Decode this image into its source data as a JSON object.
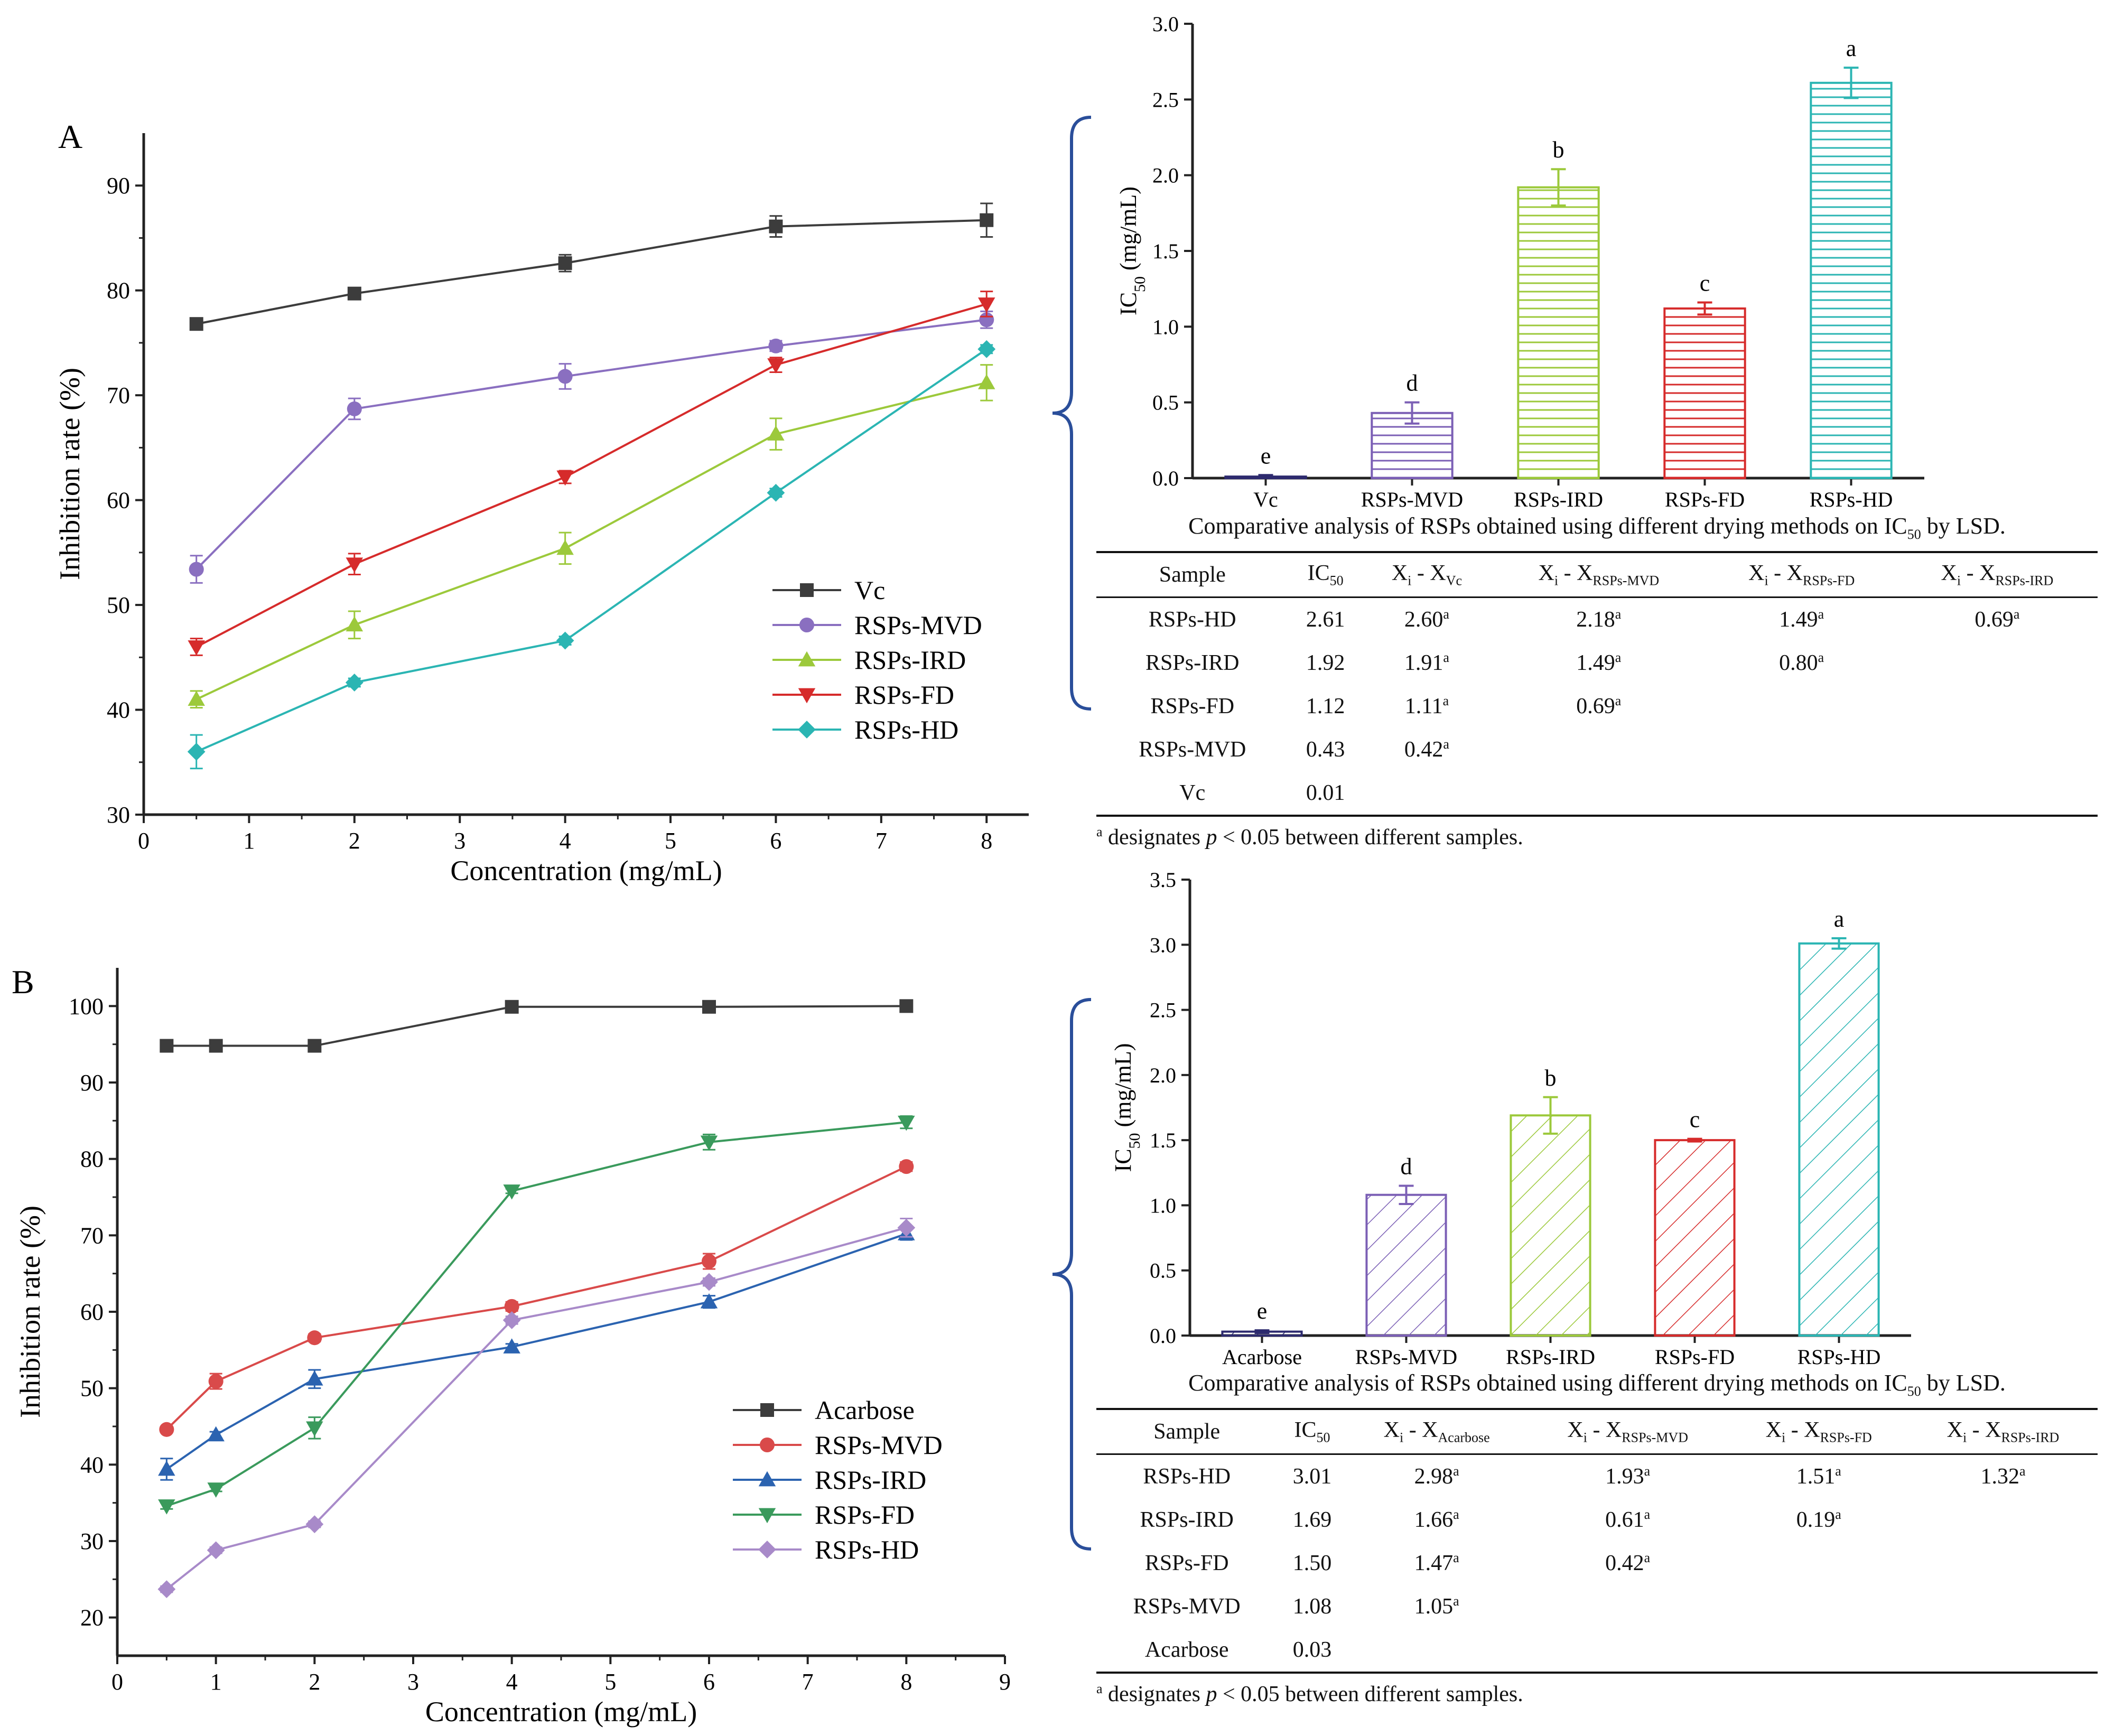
{
  "chart_data": [
    {
      "id": "A-line",
      "type": "line",
      "panel_label": "A",
      "xlabel": "Concentration (mg/mL)",
      "ylabel": "Inhibition rate (%)",
      "xlim": [
        0,
        8.4
      ],
      "ylim": [
        30,
        95
      ],
      "x_ticks": [
        "0",
        "1",
        "2",
        "3",
        "4",
        "5",
        "6",
        "7",
        "8"
      ],
      "y_ticks": [
        "30",
        "40",
        "50",
        "60",
        "70",
        "80",
        "90"
      ],
      "x": [
        0.5,
        2,
        4,
        6,
        8
      ],
      "series": [
        {
          "name": "Vc",
          "color": "#3c3c3c",
          "marker": "square",
          "values": [
            76.8,
            79.7,
            82.6,
            86.1,
            86.7
          ],
          "errors": [
            0.4,
            0.5,
            0.8,
            1.0,
            1.6
          ]
        },
        {
          "name": "RSPs-MVD",
          "color": "#8a6fc0",
          "marker": "circle",
          "values": [
            53.4,
            68.7,
            71.8,
            74.7,
            77.2
          ],
          "errors": [
            1.3,
            1.0,
            1.2,
            0.5,
            0.8
          ]
        },
        {
          "name": "RSPs-IRD",
          "color": "#9cc93b",
          "marker": "triangle-up",
          "values": [
            41.0,
            48.1,
            55.4,
            66.3,
            71.2
          ],
          "errors": [
            0.8,
            1.3,
            1.5,
            1.5,
            1.7
          ]
        },
        {
          "name": "RSPs-FD",
          "color": "#d62b2b",
          "marker": "triangle-down",
          "values": [
            46.0,
            53.9,
            62.2,
            72.9,
            78.7
          ],
          "errors": [
            0.8,
            1.0,
            0.6,
            0.7,
            1.2
          ]
        },
        {
          "name": "RSPs-HD",
          "color": "#2bb5b3",
          "marker": "diamond",
          "values": [
            36.0,
            42.6,
            46.6,
            60.7,
            74.4
          ],
          "errors": [
            1.6,
            0.4,
            0.4,
            0.4,
            0.4
          ]
        }
      ]
    },
    {
      "id": "A-bar",
      "type": "bar",
      "ylabel_main": "IC",
      "ylabel_sub": "50",
      "ylabel_unit": " (mg/mL)",
      "ylim": [
        0,
        3.0
      ],
      "y_ticks": [
        "0.0",
        "0.5",
        "1.0",
        "1.5",
        "2.0",
        "2.5",
        "3.0"
      ],
      "categories": [
        "Vc",
        "RSPs-MVD",
        "RSPs-IRD",
        "RSPs-FD",
        "RSPs-HD"
      ],
      "values": [
        0.01,
        0.43,
        1.92,
        1.12,
        2.61
      ],
      "errors": [
        0.01,
        0.07,
        0.12,
        0.04,
        0.1
      ],
      "letters": [
        "e",
        "d",
        "b",
        "c",
        "a"
      ],
      "colors": [
        "#2d2a6e",
        "#7b5fb5",
        "#9cc93b",
        "#d62b2b",
        "#2bb5b3"
      ],
      "pattern": "horizontal"
    },
    {
      "id": "B-line",
      "type": "line",
      "panel_label": "B",
      "xlabel": "Concentration (mg/mL)",
      "ylabel": "Inhibition rate (%)",
      "xlim": [
        0,
        9
      ],
      "ylim": [
        15,
        105
      ],
      "x_ticks": [
        "0",
        "1",
        "2",
        "3",
        "4",
        "5",
        "6",
        "7",
        "8",
        "9"
      ],
      "y_ticks": [
        "20",
        "30",
        "40",
        "50",
        "60",
        "70",
        "80",
        "90",
        "100"
      ],
      "x": [
        0.5,
        1,
        2,
        4,
        6,
        8
      ],
      "series": [
        {
          "name": "Acarbose",
          "color": "#3c3c3c",
          "marker": "square",
          "values": [
            94.8,
            94.8,
            94.8,
            99.9,
            99.9,
            100.0
          ],
          "errors": [
            0.3,
            0.3,
            0.3,
            0.2,
            0.2,
            0.2
          ]
        },
        {
          "name": "RSPs-MVD",
          "color": "#d94a4a",
          "marker": "circle",
          "values": [
            44.6,
            50.9,
            56.6,
            60.7,
            66.6,
            79.0
          ],
          "errors": [
            0.4,
            1.0,
            0.5,
            0.6,
            1.0,
            0.6
          ]
        },
        {
          "name": "RSPs-IRD",
          "color": "#2b63b0",
          "marker": "triangle-up",
          "values": [
            39.4,
            43.9,
            51.2,
            55.4,
            61.3,
            70.2
          ],
          "errors": [
            1.4,
            0.4,
            1.2,
            0.4,
            0.8,
            0.8
          ]
        },
        {
          "name": "RSPs-FD",
          "color": "#3a9a5c",
          "marker": "triangle-down",
          "values": [
            34.6,
            36.8,
            44.8,
            75.8,
            82.2,
            84.8
          ],
          "errors": [
            0.4,
            0.3,
            1.4,
            0.3,
            1.0,
            0.8
          ]
        },
        {
          "name": "RSPs-HD",
          "color": "#a88ac9",
          "marker": "diamond",
          "values": [
            23.7,
            28.8,
            32.2,
            58.9,
            63.9,
            71.0
          ],
          "errors": [
            0.4,
            0.4,
            0.4,
            0.5,
            0.5,
            1.2
          ]
        }
      ]
    },
    {
      "id": "B-bar",
      "type": "bar",
      "ylabel_main": "IC",
      "ylabel_sub": "50",
      "ylabel_unit": " (mg/mL)",
      "ylim": [
        0,
        3.5
      ],
      "y_ticks": [
        "0.0",
        "0.5",
        "1.0",
        "1.5",
        "2.0",
        "2.5",
        "3.0",
        "3.5"
      ],
      "categories": [
        "Acarbose",
        "RSPs-MVD",
        "RSPs-IRD",
        "RSPs-FD",
        "RSPs-HD"
      ],
      "values": [
        0.03,
        1.08,
        1.69,
        1.5,
        3.01
      ],
      "errors": [
        0.01,
        0.07,
        0.14,
        0.01,
        0.04
      ],
      "letters": [
        "e",
        "d",
        "b",
        "c",
        "a"
      ],
      "colors": [
        "#2d2a6e",
        "#7b5fb5",
        "#9cc93b",
        "#d62b2b",
        "#2bb5b3"
      ],
      "pattern": "diagonal"
    }
  ],
  "tableA": {
    "caption_pre": "Comparative analysis of RSPs obtained using different drying methods on IC",
    "caption_sub": "50",
    "caption_post": " by LSD.",
    "headers": [
      "Sample",
      "IC50",
      "Xi - XVc",
      "Xi - XRSPs-MVD",
      "Xi - XRSPs-FD",
      "Xi - XRSPs-IRD"
    ],
    "rows": [
      [
        "RSPs-HD",
        "2.61",
        "2.60",
        "2.18",
        "1.49",
        "0.69"
      ],
      [
        "RSPs-IRD",
        "1.92",
        "1.91",
        "1.49",
        "0.80",
        ""
      ],
      [
        "RSPs-FD",
        "1.12",
        "1.11",
        "0.69",
        "",
        ""
      ],
      [
        "RSPs-MVD",
        "0.43",
        "0.42",
        "",
        "",
        ""
      ],
      [
        "Vc",
        "0.01",
        "",
        "",
        "",
        ""
      ]
    ],
    "sig_mark": "a",
    "note_pre": " designates ",
    "note_p": "p",
    "note_post": " < 0.05  between different samples."
  },
  "tableB": {
    "caption_pre": "Comparative analysis  of RSPs obtained using different drying methods on IC",
    "caption_sub": "50",
    "caption_post": " by LSD.",
    "headers": [
      "Sample",
      "IC50",
      "Xi - XAcarbose",
      "Xi - XRSPs-MVD",
      "Xi - XRSPs-FD",
      "Xi - XRSPs-IRD"
    ],
    "rows": [
      [
        "RSPs-HD",
        "3.01",
        "2.98",
        "1.93",
        "1.51",
        "1.32"
      ],
      [
        "RSPs-IRD",
        "1.69",
        "1.66",
        "0.61",
        "0.19",
        ""
      ],
      [
        "RSPs-FD",
        "1.50",
        "1.47",
        "0.42",
        "",
        ""
      ],
      [
        "RSPs-MVD",
        "1.08",
        "1.05",
        "",
        "",
        ""
      ],
      [
        "Acarbose",
        "0.03",
        "",
        "",
        "",
        ""
      ]
    ],
    "sig_mark": "a",
    "note_pre": " designates ",
    "note_p": "p",
    "note_post": " < 0.05  between different samples."
  },
  "colors": {
    "brace": "#2a4e9a",
    "axis": "#222222"
  }
}
